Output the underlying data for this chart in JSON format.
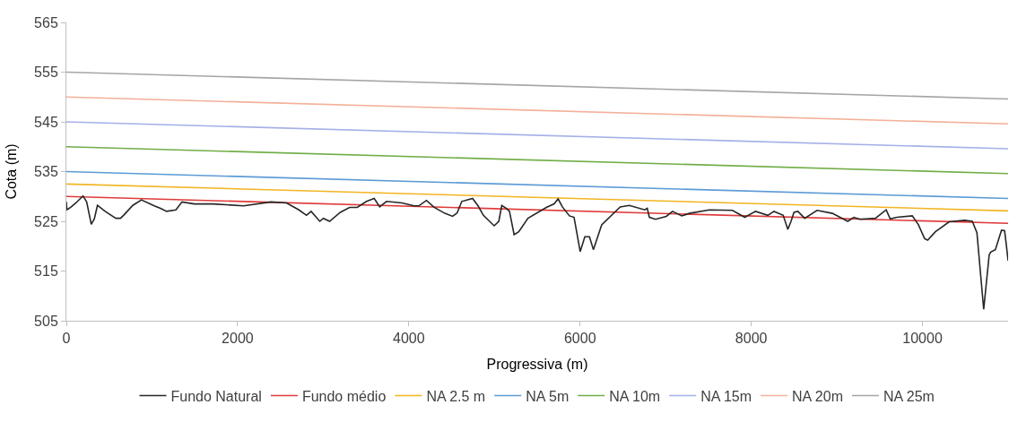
{
  "chart_data": {
    "type": "line",
    "xlabel": "Progressiva (m)",
    "ylabel": "Cota (m)",
    "xlim": [
      0,
      11000
    ],
    "xticks": [
      0,
      2000,
      4000,
      6000,
      8000,
      10000
    ],
    "ylim": [
      505,
      565
    ],
    "yticks": [
      505,
      515,
      525,
      535,
      545,
      555,
      565
    ],
    "grid": false,
    "legend": "bottom",
    "marker": "none",
    "line_style": "solid",
    "series": [
      {
        "name": "Fundo Natural",
        "color": "#262626",
        "x": [
          0,
          5,
          57,
          111,
          194,
          237,
          291,
          327,
          363,
          453,
          578,
          632,
          668,
          776,
          876,
          1027,
          1099,
          1171,
          1279,
          1351,
          1494,
          1710,
          2069,
          2392,
          2572,
          2716,
          2805,
          2859,
          2960,
          3003,
          3075,
          3200,
          3308,
          3398,
          3506,
          3596,
          3660,
          3739,
          3919,
          4062,
          4116,
          4206,
          4296,
          4421,
          4511,
          4565,
          4619,
          4745,
          4809,
          4871,
          4997,
          5051,
          5086,
          5140,
          5176,
          5230,
          5284,
          5392,
          5607,
          5697,
          5744,
          5794,
          5876,
          5930,
          6002,
          6056,
          6110,
          6156,
          6253,
          6469,
          6576,
          6756,
          6785,
          6810,
          6882,
          7008,
          7080,
          7188,
          7277,
          7511,
          7780,
          7924,
          8050,
          8193,
          8265,
          8373,
          8427,
          8463,
          8499,
          8545,
          8624,
          8768,
          8947,
          9127,
          9199,
          9270,
          9450,
          9576,
          9623,
          9702,
          9881,
          9953,
          10025,
          10061,
          10151,
          10312,
          10492,
          10582,
          10636,
          10715,
          10779,
          10797,
          10851,
          10923,
          10959,
          10977,
          11000
        ],
        "values": [
          528.9,
          527.3,
          527.9,
          528.7,
          530.1,
          528.9,
          524.4,
          525.5,
          528.2,
          527.0,
          525.6,
          525.6,
          526.2,
          528.2,
          529.3,
          528.1,
          527.6,
          527.0,
          527.3,
          528.9,
          528.5,
          528.5,
          528.1,
          528.9,
          528.7,
          527.3,
          526.2,
          527.0,
          525.0,
          525.6,
          525.0,
          526.8,
          527.8,
          527.8,
          529.0,
          529.6,
          527.9,
          529.0,
          528.7,
          528.1,
          528.1,
          529.2,
          527.8,
          526.6,
          526.0,
          526.7,
          529.0,
          529.6,
          528.1,
          526.2,
          524.1,
          525.0,
          528.2,
          527.6,
          527.0,
          522.3,
          522.9,
          525.6,
          527.8,
          528.5,
          529.5,
          527.9,
          526.1,
          525.8,
          518.9,
          521.9,
          521.9,
          519.3,
          524.3,
          527.9,
          528.2,
          527.3,
          527.6,
          525.8,
          525.4,
          526.0,
          527.0,
          526.1,
          526.6,
          527.3,
          527.2,
          525.8,
          527.0,
          526.2,
          527.0,
          526.2,
          523.4,
          524.9,
          526.8,
          527.0,
          525.6,
          527.2,
          526.6,
          525.0,
          525.8,
          525.4,
          525.6,
          527.3,
          525.5,
          525.8,
          526.1,
          524.3,
          521.5,
          521.2,
          522.9,
          524.9,
          525.2,
          525.0,
          522.7,
          507.3,
          518.2,
          518.8,
          519.3,
          523.2,
          523.1,
          520.6,
          517.1
        ]
      },
      {
        "name": "Fundo médio",
        "color": "#e03a3a",
        "x": [
          0,
          11000
        ],
        "values": [
          530.0,
          524.6
        ]
      },
      {
        "name": "NA 2.5 m",
        "color": "#f2b522",
        "x": [
          0,
          11000
        ],
        "values": [
          532.5,
          527.1
        ]
      },
      {
        "name": "NA 5m",
        "color": "#5b9bd5",
        "x": [
          0,
          11000
        ],
        "values": [
          535.0,
          529.6
        ]
      },
      {
        "name": "NA 10m",
        "color": "#70ad47",
        "x": [
          0,
          11000
        ],
        "values": [
          540.0,
          534.6
        ]
      },
      {
        "name": "NA 15m",
        "color": "#a4b0e8",
        "x": [
          0,
          11000
        ],
        "values": [
          545.0,
          539.6
        ]
      },
      {
        "name": "NA 20m",
        "color": "#f4b09a",
        "x": [
          0,
          11000
        ],
        "values": [
          550.0,
          544.6
        ]
      },
      {
        "name": "NA 25m",
        "color": "#a5a5a5",
        "x": [
          0,
          11000
        ],
        "values": [
          555.0,
          549.6
        ]
      }
    ]
  }
}
